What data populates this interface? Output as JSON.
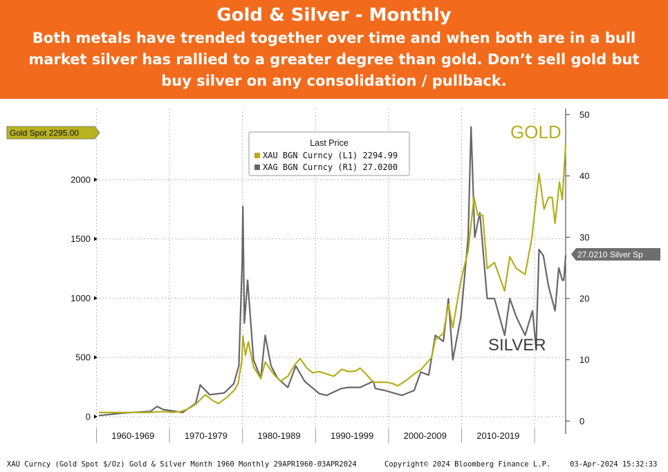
{
  "header": {
    "title": "Gold & Silver - Monthly",
    "subtitle": "Both metals have trended together over time and when both are in a bull market silver has rallied to a greater degree than gold. Don’t sell gold but buy silver on any consolidation / pullback."
  },
  "colors": {
    "banner": "#f26b1d",
    "gold": "#b5ad1c",
    "silver": "#666666",
    "tag": "#b8b21f",
    "silver_tag": "#6e6e6e"
  },
  "chart_data": {
    "type": "line",
    "x_range": [
      1960.33,
      2024.25
    ],
    "left_axis": {
      "ticks": [
        0,
        500,
        1000,
        1500,
        2000
      ],
      "range": [
        -100,
        2600
      ]
    },
    "right_axis": {
      "ticks": [
        0,
        10,
        20,
        30,
        40,
        50
      ],
      "range": [
        -1.2,
        51
      ]
    },
    "decade_labels": [
      "1960-1969",
      "1970-1979",
      "1980-1989",
      "1990-1999",
      "2000-2009",
      "2010-2019"
    ],
    "grid": true,
    "legend": {
      "title": "Last Price",
      "placement": "top-center",
      "entries": [
        "XAU BGN Curncy  (L1) 2294.99",
        "XAG BGN Curncy  (R1) 27.0200"
      ]
    },
    "last_value_tags": {
      "gold": "Gold Spot 2295.00",
      "silver": "27.0210 Silver Sp"
    },
    "annotations": {
      "gold": "GOLD",
      "silver": "SILVER"
    },
    "series": [
      {
        "name": "XAU BGN Curncy (L1)",
        "axis": "left",
        "points": [
          [
            1960.33,
            35
          ],
          [
            1967,
            35
          ],
          [
            1968.3,
            40
          ],
          [
            1969.5,
            42
          ],
          [
            1970.5,
            36
          ],
          [
            1971.5,
            42
          ],
          [
            1972.5,
            64
          ],
          [
            1973.5,
            100
          ],
          [
            1974.9,
            185
          ],
          [
            1975.8,
            140
          ],
          [
            1976.7,
            110
          ],
          [
            1977.9,
            165
          ],
          [
            1978.9,
            225
          ],
          [
            1979.4,
            280
          ],
          [
            1979.9,
            470
          ],
          [
            1980.05,
            680
          ],
          [
            1980.4,
            520
          ],
          [
            1980.8,
            630
          ],
          [
            1981.5,
            420
          ],
          [
            1982.5,
            320
          ],
          [
            1983.1,
            460
          ],
          [
            1983.9,
            390
          ],
          [
            1984.5,
            340
          ],
          [
            1985.2,
            300
          ],
          [
            1986.2,
            340
          ],
          [
            1987.2,
            440
          ],
          [
            1987.9,
            490
          ],
          [
            1988.8,
            410
          ],
          [
            1989.6,
            370
          ],
          [
            1990.5,
            380
          ],
          [
            1991.5,
            360
          ],
          [
            1992.5,
            340
          ],
          [
            1993.6,
            400
          ],
          [
            1994.5,
            380
          ],
          [
            1995.5,
            385
          ],
          [
            1996.1,
            410
          ],
          [
            1997.2,
            340
          ],
          [
            1997.9,
            290
          ],
          [
            1998.5,
            290
          ],
          [
            1999.7,
            290
          ],
          [
            2000.5,
            280
          ],
          [
            2001.3,
            260
          ],
          [
            2002.5,
            310
          ],
          [
            2003.5,
            360
          ],
          [
            2004.5,
            400
          ],
          [
            2005.9,
            500
          ],
          [
            2006.4,
            650
          ],
          [
            2007.5,
            700
          ],
          [
            2008.2,
            950
          ],
          [
            2008.8,
            750
          ],
          [
            2009.9,
            1150
          ],
          [
            2010.9,
            1400
          ],
          [
            2011.7,
            1850
          ],
          [
            2012.2,
            1700
          ],
          [
            2012.9,
            1700
          ],
          [
            2013.5,
            1250
          ],
          [
            2014.5,
            1300
          ],
          [
            2015.9,
            1060
          ],
          [
            2016.6,
            1350
          ],
          [
            2017.5,
            1250
          ],
          [
            2018.7,
            1200
          ],
          [
            2019.6,
            1500
          ],
          [
            2020.6,
            2050
          ],
          [
            2021.3,
            1750
          ],
          [
            2021.9,
            1850
          ],
          [
            2022.4,
            1850
          ],
          [
            2022.8,
            1630
          ],
          [
            2023.4,
            1980
          ],
          [
            2023.8,
            1830
          ],
          [
            2024.0,
            2050
          ],
          [
            2024.25,
            2295
          ]
        ]
      },
      {
        "name": "XAG BGN Curncy (R1)",
        "axis": "right",
        "points": [
          [
            1960.33,
            0.91
          ],
          [
            1963.5,
            1.29
          ],
          [
            1967.4,
            1.6
          ],
          [
            1968.3,
            2.4
          ],
          [
            1969.1,
            1.9
          ],
          [
            1971.8,
            1.4
          ],
          [
            1973.6,
            2.9
          ],
          [
            1974.2,
            5.9
          ],
          [
            1975.5,
            4.3
          ],
          [
            1977.5,
            4.6
          ],
          [
            1978.8,
            6.1
          ],
          [
            1979.5,
            9.0
          ],
          [
            1979.95,
            26.0
          ],
          [
            1980.05,
            35.0
          ],
          [
            1980.25,
            16.0
          ],
          [
            1980.7,
            23.0
          ],
          [
            1981.5,
            10.0
          ],
          [
            1982.5,
            7.0
          ],
          [
            1983.1,
            14.0
          ],
          [
            1983.9,
            9.0
          ],
          [
            1984.8,
            7.0
          ],
          [
            1986.2,
            5.5
          ],
          [
            1987.3,
            9.0
          ],
          [
            1988.5,
            6.5
          ],
          [
            1990.5,
            4.5
          ],
          [
            1991.5,
            4.2
          ],
          [
            1993.5,
            5.3
          ],
          [
            1994.5,
            5.5
          ],
          [
            1996.1,
            5.5
          ],
          [
            1997.9,
            6.5
          ],
          [
            1998.2,
            5.3
          ],
          [
            1999.5,
            5.0
          ],
          [
            2001.8,
            4.2
          ],
          [
            2003.5,
            5.0
          ],
          [
            2004.4,
            8.0
          ],
          [
            2005.5,
            7.5
          ],
          [
            2006.4,
            14.0
          ],
          [
            2007.5,
            13.0
          ],
          [
            2008.2,
            20.0
          ],
          [
            2008.8,
            10.0
          ],
          [
            2009.9,
            17.0
          ],
          [
            2010.9,
            30.0
          ],
          [
            2011.3,
            48.0
          ],
          [
            2011.8,
            30.0
          ],
          [
            2012.5,
            34.0
          ],
          [
            2013.5,
            20.0
          ],
          [
            2014.5,
            20.0
          ],
          [
            2015.9,
            14.0
          ],
          [
            2016.6,
            20.0
          ],
          [
            2017.5,
            17.0
          ],
          [
            2018.7,
            14.0
          ],
          [
            2019.7,
            18.0
          ],
          [
            2020.2,
            12.0
          ],
          [
            2020.6,
            28.0
          ],
          [
            2021.2,
            27.0
          ],
          [
            2021.9,
            22.0
          ],
          [
            2022.8,
            18.0
          ],
          [
            2023.3,
            25.0
          ],
          [
            2023.8,
            23.0
          ],
          [
            2024.0,
            23.0
          ],
          [
            2024.25,
            27.02
          ]
        ]
      }
    ]
  },
  "footer": {
    "left": "XAU Curncy (Gold Spot  $/Oz) Gold & Silver Month 1960  Monthly 29APR1960-03APR2024",
    "center": "Copyright© 2024 Bloomberg Finance L.P.",
    "right": "03-Apr-2024 15:32:33"
  }
}
